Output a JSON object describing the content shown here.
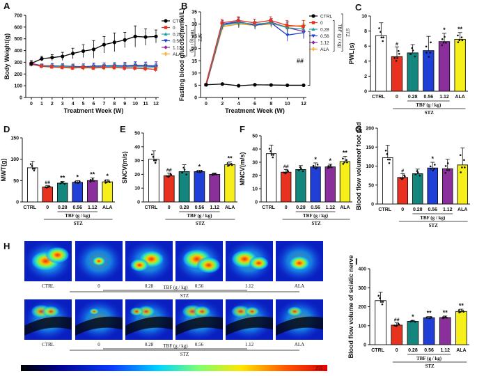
{
  "colors": {
    "CTRL": "#ffffff",
    "0": "#e8311f",
    "0.28": "#13877e",
    "0.56": "#1f3fd6",
    "1.12": "#8b2f9c",
    "ALA": "#f6ef1a",
    "line_CTRL": "#000000",
    "line_0": "#e8311f",
    "line_0.28": "#1aa6a0",
    "line_0.56": "#1f3fd6",
    "line_1.12": "#8b2f9c",
    "line_ALA": "#f6a21c"
  },
  "labels": {
    "tbf": "TBF (g / kg)",
    "stz": "STZ",
    "scale_min": "0",
    "scale_max": "255"
  },
  "panel_H": {
    "letter": "H",
    "top_row": [
      "CTRL",
      "0",
      "0.28",
      "0.56",
      "1.12",
      "ALA"
    ],
    "bottom_row": [
      "CTRL",
      "0",
      "0.28",
      "0.56",
      "1.12",
      "ALA"
    ]
  },
  "chart_data": [
    {
      "id": "A",
      "type": "line",
      "ylabel": "Body Weight(g)",
      "xlabel": "Treatment Week  (W)",
      "x": [
        0,
        1,
        2,
        3,
        4,
        5,
        6,
        7,
        8,
        9,
        10,
        11,
        12
      ],
      "ylim": [
        0,
        700
      ],
      "yticks": [
        0,
        100,
        200,
        300,
        400,
        500,
        600,
        700
      ],
      "legend": [
        "CTRL",
        "0",
        "0.28",
        "0.56",
        "1.12",
        "ALA"
      ],
      "legend_group": "TBF (g / kg)",
      "legend_stz": "STZ",
      "series": [
        {
          "name": "CTRL",
          "values": [
            290,
            330,
            340,
            350,
            375,
            395,
            410,
            450,
            470,
            490,
            520,
            515,
            520
          ],
          "err": [
            25,
            20,
            25,
            35,
            45,
            55,
            75,
            70,
            80,
            65,
            90,
            70,
            55
          ]
        },
        {
          "name": "0",
          "values": [
            285,
            265,
            260,
            255,
            250,
            255,
            250,
            255,
            255,
            250,
            250,
            245,
            240
          ],
          "err": [
            15,
            15,
            15,
            15,
            15,
            15,
            15,
            20,
            20,
            20,
            20,
            20,
            20
          ]
        },
        {
          "name": "0.28",
          "values": [
            280,
            270,
            265,
            265,
            260,
            258,
            260,
            262,
            265,
            260,
            262,
            260,
            258
          ],
          "err": [
            15,
            15,
            15,
            15,
            20,
            20,
            20,
            20,
            25,
            25,
            25,
            25,
            25
          ]
        },
        {
          "name": "0.56",
          "values": [
            285,
            270,
            268,
            265,
            262,
            260,
            265,
            268,
            270,
            268,
            272,
            270,
            265
          ],
          "err": [
            15,
            15,
            20,
            20,
            20,
            20,
            25,
            25,
            25,
            25,
            30,
            30,
            30
          ]
        },
        {
          "name": "1.12",
          "values": [
            290,
            272,
            270,
            268,
            265,
            262,
            268,
            270,
            272,
            270,
            275,
            272,
            270
          ],
          "err": [
            15,
            15,
            20,
            20,
            20,
            25,
            25,
            25,
            25,
            30,
            30,
            30,
            35
          ]
        },
        {
          "name": "ALA",
          "values": [
            285,
            268,
            262,
            260,
            258,
            250,
            255,
            258,
            260,
            262,
            265,
            262,
            260
          ],
          "err": [
            15,
            15,
            15,
            20,
            20,
            20,
            20,
            25,
            25,
            25,
            25,
            25,
            25
          ]
        }
      ]
    },
    {
      "id": "B",
      "type": "line",
      "ylabel": "Fasting blood glucose(mmol/L)",
      "xlabel": "Treatment Week  (W)",
      "x": [
        0,
        2,
        4,
        6,
        8,
        10,
        12
      ],
      "ylim": [
        0,
        35
      ],
      "yticks": [
        0,
        5,
        10,
        15,
        20,
        25,
        30,
        35
      ],
      "legend": [
        "CTRL",
        "0",
        "0.28",
        "0.56",
        "1.12",
        "ALA"
      ],
      "legend_group": "TBF (g / kg)",
      "legend_stz": "STZ",
      "annotation": "##",
      "series": [
        {
          "name": "CTRL",
          "values": [
            5.2,
            5.5,
            4.8,
            5.2,
            5.1,
            5.0,
            5.0
          ],
          "err": [
            0.3,
            0.4,
            0.3,
            0.3,
            0.3,
            0.3,
            0.3
          ]
        },
        {
          "name": "0",
          "values": [
            5.2,
            30.5,
            31.5,
            30.5,
            31.5,
            29.5,
            29.0
          ],
          "err": [
            0.3,
            1.5,
            1.5,
            1.5,
            1.5,
            2.0,
            2.5
          ]
        },
        {
          "name": "0.28",
          "values": [
            5.2,
            29.5,
            30.5,
            30.0,
            30.5,
            28.5,
            28.0
          ],
          "err": [
            0.3,
            1.5,
            2.0,
            2.0,
            1.5,
            2.0,
            2.0
          ]
        },
        {
          "name": "0.56",
          "values": [
            5.2,
            30.0,
            31.0,
            29.5,
            30.5,
            25.5,
            26.5
          ],
          "err": [
            0.3,
            1.5,
            1.5,
            1.5,
            1.5,
            2.5,
            2.5
          ]
        },
        {
          "name": "1.12",
          "values": [
            5.2,
            29.5,
            30.8,
            29.5,
            30.8,
            28.5,
            27.0
          ],
          "err": [
            0.3,
            1.5,
            2.0,
            1.5,
            1.5,
            2.5,
            2.5
          ]
        },
        {
          "name": "ALA",
          "values": [
            5.2,
            29.0,
            30.0,
            29.5,
            30.0,
            29.0,
            29.5
          ],
          "err": [
            0.3,
            1.5,
            1.5,
            1.5,
            1.5,
            2.0,
            2.0
          ]
        }
      ]
    },
    {
      "id": "C",
      "type": "bar",
      "ylabel": "PWL(s)",
      "categories": [
        "CTRL",
        "0",
        "0.28",
        "0.56",
        "1.12",
        "ALA"
      ],
      "values": [
        7.4,
        4.6,
        5.1,
        5.4,
        6.6,
        6.9
      ],
      "err": [
        1.7,
        1.3,
        1.1,
        1.9,
        1.1,
        0.9
      ],
      "sig": [
        "",
        "#",
        "",
        "",
        "*",
        "**"
      ],
      "ylim": [
        0,
        10
      ],
      "yticks": [
        0,
        2,
        4,
        6,
        8,
        10
      ]
    },
    {
      "id": "D",
      "type": "bar",
      "ylabel": "MWT(g)",
      "categories": [
        "CTRL",
        "0",
        "0.28",
        "0.56",
        "1.12",
        "ALA"
      ],
      "values": [
        80,
        35,
        44,
        46,
        50,
        47
      ],
      "err": [
        15,
        3,
        4,
        4,
        6,
        5
      ],
      "sig": [
        "",
        "##",
        "**",
        "*",
        "**",
        "*"
      ],
      "ylim": [
        0,
        150
      ],
      "yticks": [
        0,
        50,
        100,
        150
      ]
    },
    {
      "id": "E",
      "type": "bar",
      "ylabel": "SNCV(m/s)",
      "categories": [
        "CTRL",
        "0",
        "0.28",
        "0.56",
        "1.12",
        "ALA"
      ],
      "values": [
        31,
        19,
        22,
        22,
        20,
        27
      ],
      "err": [
        6,
        2,
        5,
        1,
        1,
        2
      ],
      "sig": [
        "",
        "##",
        "",
        "*",
        "",
        "**"
      ],
      "ylim": [
        0,
        50
      ],
      "yticks": [
        0,
        10,
        20,
        30,
        40,
        50
      ]
    },
    {
      "id": "F",
      "type": "bar",
      "ylabel": "MNCV(m/s)",
      "categories": [
        "CTRL",
        "0",
        "0.28",
        "0.56",
        "1.12",
        "ALA"
      ],
      "values": [
        36.5,
        22.5,
        24.5,
        26.5,
        26.5,
        30.5
      ],
      "err": [
        6.5,
        2,
        3,
        3,
        2,
        4
      ],
      "sig": [
        "",
        "##",
        "",
        "*",
        "*",
        "**"
      ],
      "ylim": [
        0,
        50
      ],
      "yticks": [
        0,
        10,
        20,
        30,
        40,
        50
      ]
    },
    {
      "id": "G",
      "type": "bar",
      "ylabel": "Blood flow volumeof foot pad",
      "categories": [
        "CTRL",
        "0",
        "0.28",
        "0.56",
        "1.12",
        "ALA"
      ],
      "values": [
        122,
        70,
        80,
        95,
        93,
        103
      ],
      "err": [
        33,
        10,
        12,
        15,
        25,
        45
      ],
      "sig": [
        "",
        "#",
        "",
        "*",
        "",
        ""
      ],
      "ylim": [
        0,
        200
      ],
      "yticks": [
        0,
        50,
        100,
        150,
        200
      ]
    },
    {
      "id": "I",
      "type": "bar",
      "ylabel": "Blood flow volume of sciatic nerve",
      "categories": [
        "CTRL",
        "0",
        "0.28",
        "0.56",
        "1.12",
        "ALA"
      ],
      "values": [
        232,
        103,
        123,
        142,
        143,
        175
      ],
      "err": [
        45,
        12,
        5,
        6,
        8,
        12
      ],
      "sig": [
        "",
        "##",
        "*",
        "**",
        "**",
        "**"
      ],
      "ylim": [
        0,
        400
      ],
      "yticks": [
        0,
        100,
        200,
        300,
        400
      ]
    }
  ]
}
